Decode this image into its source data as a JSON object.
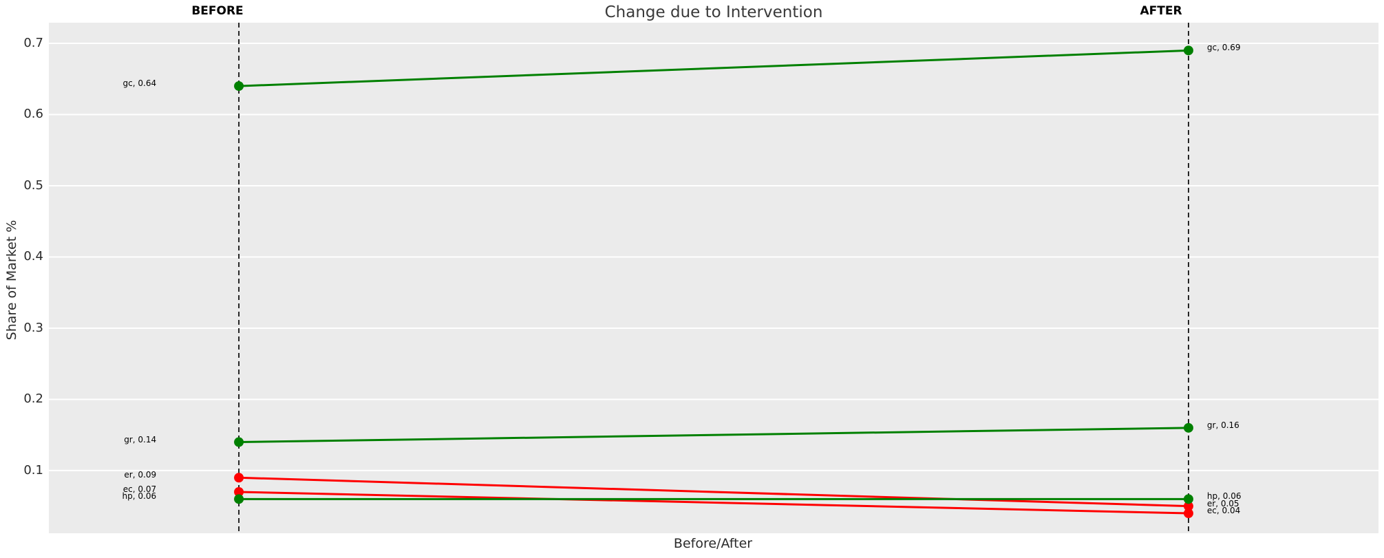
{
  "header": {
    "title": "Change due to Intervention",
    "column_before": "BEFORE",
    "column_after": "AFTER"
  },
  "axes": {
    "xlabel": "Before/After",
    "ylabel": "Share of Market %"
  },
  "colors": {
    "increase": "#008000",
    "decrease": "#ff0000",
    "plot_background": "#ebebeb",
    "gridline": "#ffffff",
    "reference_line": "#111111",
    "text": "#2b2b2b",
    "annotation": "#000000"
  },
  "chart_data": {
    "type": "line",
    "subtype": "slopegraph",
    "title": "Change due to Intervention",
    "xlabel": "Before/After",
    "ylabel": "Share of Market %",
    "x_categories": [
      "BEFORE",
      "AFTER"
    ],
    "ytick_labels": [
      "0.1",
      "0.2",
      "0.3",
      "0.4",
      "0.5",
      "0.6",
      "0.7"
    ],
    "ylim": [
      0.012,
      0.729
    ],
    "grid": true,
    "legend": "none",
    "reference_lines": {
      "orientation": "vertical",
      "style": "dashed",
      "color": "#111111",
      "at": [
        "BEFORE",
        "AFTER"
      ]
    },
    "series": [
      {
        "name": "gc",
        "values": [
          0.64,
          0.69
        ],
        "trend": "increase",
        "color": "#008000",
        "labels": [
          "gc, 0.64",
          "gc, 0.69"
        ]
      },
      {
        "name": "gr",
        "values": [
          0.14,
          0.16
        ],
        "trend": "increase",
        "color": "#008000",
        "labels": [
          "gr, 0.14",
          "gr, 0.16"
        ]
      },
      {
        "name": "er",
        "values": [
          0.09,
          0.05
        ],
        "trend": "decrease",
        "color": "#ff0000",
        "labels": [
          "er, 0.09",
          "er, 0.05"
        ]
      },
      {
        "name": "ec",
        "values": [
          0.07,
          0.04
        ],
        "trend": "decrease",
        "color": "#ff0000",
        "labels": [
          "ec, 0.07",
          "ec, 0.04"
        ]
      },
      {
        "name": "hp",
        "values": [
          0.06,
          0.06
        ],
        "trend": "increase",
        "color": "#008000",
        "labels": [
          "hp, 0.06",
          "hp, 0.06"
        ]
      }
    ]
  }
}
